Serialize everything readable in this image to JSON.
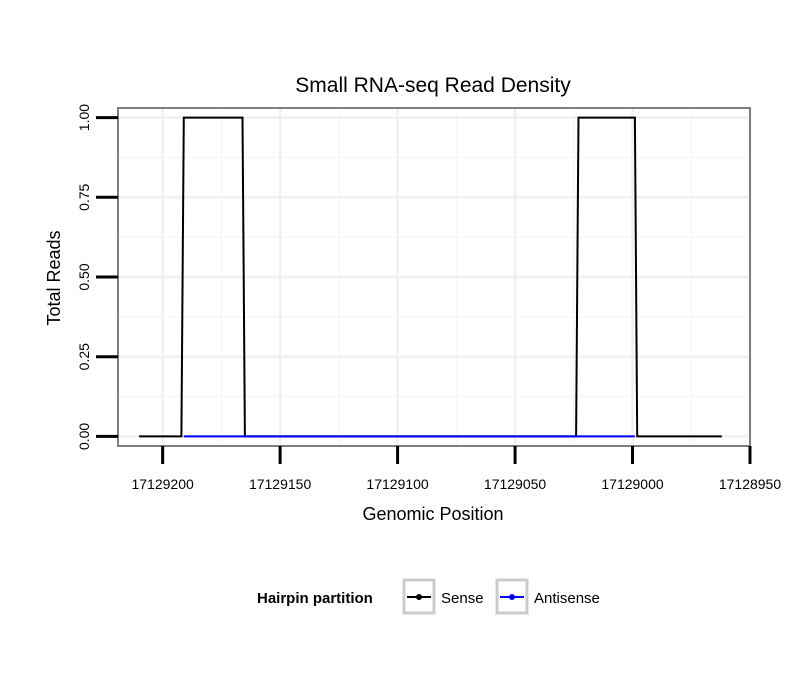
{
  "chart_data": {
    "type": "line",
    "title": "Small RNA-seq Read Density",
    "xlabel": "Genomic Position",
    "ylabel": "Total Reads",
    "x_reversed": true,
    "xlim": [
      17129219,
      17128950
    ],
    "ylim": [
      -0.03,
      1.03
    ],
    "x_ticks": [
      17129200,
      17129150,
      17129100,
      17129050,
      17129000,
      17128950
    ],
    "x_tick_labels": [
      "17129200",
      "17129150",
      "17129100",
      "17129050",
      "17129000",
      "17128950"
    ],
    "y_ticks": [
      0.0,
      0.25,
      0.5,
      0.75,
      1.0
    ],
    "y_tick_labels": [
      "0.00",
      "0.25",
      "0.50",
      "0.75",
      "1.00"
    ],
    "grid": true,
    "legend": {
      "title": "Hairpin partition",
      "position": "bottom"
    },
    "series": [
      {
        "name": "Sense",
        "color": "#000000",
        "x": [
          17129210,
          17129192,
          17129191,
          17129166,
          17129165,
          17129024,
          17129023,
          17128999,
          17128998,
          17128962
        ],
        "y": [
          0,
          0,
          1,
          1,
          0,
          0,
          1,
          1,
          0,
          0
        ]
      },
      {
        "name": "Antisense",
        "color": "#0000ff",
        "x": [
          17129191,
          17129165,
          17129023,
          17128999
        ],
        "y": [
          0,
          0,
          0,
          0
        ]
      }
    ]
  }
}
